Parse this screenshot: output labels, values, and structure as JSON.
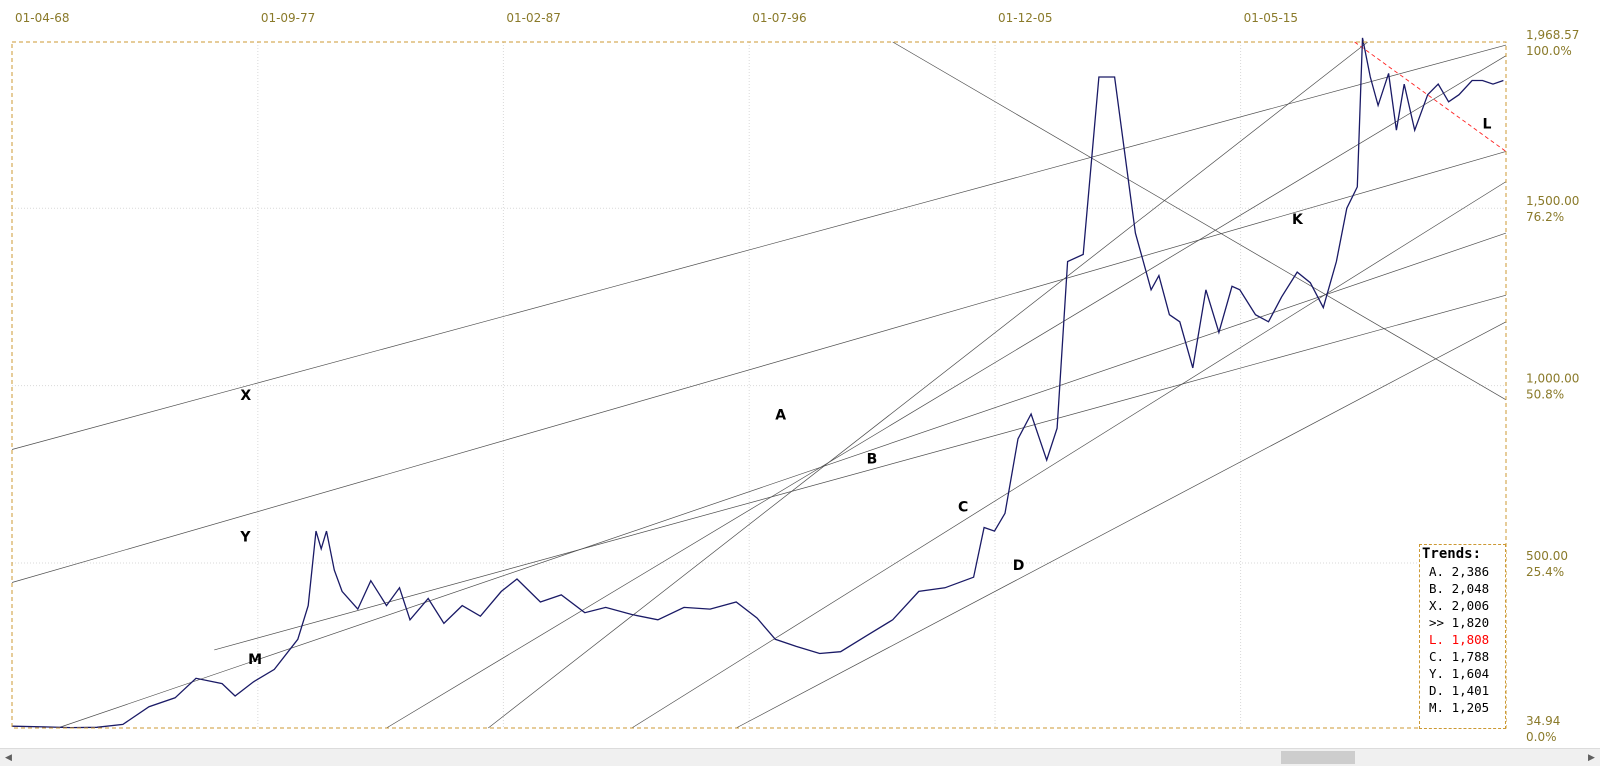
{
  "chart_data": {
    "type": "line",
    "x_tick_labels": [
      "01-04-68",
      "01-09-77",
      "01-02-87",
      "01-07-96",
      "01-12-05",
      "01-05-15"
    ],
    "y_price_labels": [
      "1,968.57",
      "1,500.00",
      "1,000.00",
      "500.00",
      "34.94"
    ],
    "y_pct_labels": [
      "100.0%",
      "76.2%",
      "50.8%",
      "25.4%",
      "0.0%"
    ],
    "y_tick_values": [
      1968.57,
      1500,
      1000,
      500,
      34.94
    ],
    "ylim": [
      34.94,
      1968.57
    ],
    "x_tick_years": [
      1968.25,
      1977.67,
      1987.08,
      1996.5,
      2005.92,
      2015.33
    ],
    "xlim": [
      1968.25,
      2025.5
    ],
    "series": [
      {
        "color": "#1a1a66",
        "x": [
          1968.25,
          1969.5,
          1970.5,
          1971.5,
          1972.5,
          1973.5,
          1974.5,
          1975.3,
          1976.3,
          1976.8,
          1977.5,
          1978.3,
          1979.2,
          1979.6,
          1979.9,
          1980.1,
          1980.3,
          1980.6,
          1980.9,
          1981.5,
          1982,
          1982.6,
          1983.1,
          1983.5,
          1984.2,
          1984.8,
          1985.5,
          1986.2,
          1987,
          1987.6,
          1988.5,
          1989.3,
          1990.2,
          1991,
          1992,
          1993,
          1994,
          1995,
          1996,
          1996.8,
          1997.5,
          1998.3,
          1999.2,
          2000,
          2001,
          2002,
          2003,
          2004,
          2005.1,
          2005.5,
          2005.9,
          2006.3,
          2006.8,
          2007.3,
          2007.9,
          2008.3,
          2008.7,
          2009.3,
          2009.9,
          2010.5,
          2010.9,
          2011.3,
          2011.6,
          2011.9,
          2012.2,
          2012.6,
          2013,
          2013.5,
          2014,
          2014.5,
          2015,
          2015.3,
          2015.9,
          2016.4,
          2016.9,
          2017.5,
          2018,
          2018.5,
          2019,
          2019.4,
          2019.8,
          2020,
          2020.3,
          2020.6,
          2021,
          2021.3,
          2021.6,
          2022,
          2022.5,
          2022.9,
          2023.3,
          2023.7,
          2024.2,
          2024.6,
          2025,
          2025.4
        ],
        "y": [
          40,
          38,
          36,
          37,
          45,
          95,
          120,
          175,
          160,
          125,
          165,
          200,
          285,
          380,
          590,
          540,
          590,
          480,
          420,
          370,
          450,
          380,
          430,
          340,
          400,
          330,
          380,
          350,
          420,
          455,
          390,
          410,
          360,
          375,
          355,
          340,
          375,
          370,
          390,
          345,
          285,
          265,
          245,
          250,
          295,
          340,
          420,
          430,
          460,
          600,
          590,
          640,
          850,
          920,
          790,
          880,
          1350,
          1370,
          1870,
          1870,
          1650,
          1430,
          1350,
          1270,
          1310,
          1200,
          1180,
          1050,
          1270,
          1150,
          1280,
          1270,
          1200,
          1180,
          1250,
          1320,
          1290,
          1220,
          1350,
          1500,
          1560,
          1980,
          1870,
          1790,
          1880,
          1720,
          1850,
          1720,
          1820,
          1850,
          1800,
          1820,
          1860,
          1860,
          1850,
          1860
        ]
      }
    ],
    "trend_lines": [
      {
        "points": [
          [
            1968.25,
            820
          ],
          [
            2025.5,
            1960
          ]
        ]
      },
      {
        "points": [
          [
            1968.25,
            445
          ],
          [
            2025.5,
            1660
          ]
        ]
      },
      {
        "points": [
          [
            1976.0,
            255
          ],
          [
            2025.5,
            1255
          ]
        ]
      },
      {
        "points": [
          [
            1970.0,
            34.94
          ],
          [
            2025.5,
            1430
          ]
        ]
      },
      {
        "points": [
          [
            1982.6,
            34.94
          ],
          [
            2025.5,
            1930
          ]
        ]
      },
      {
        "points": [
          [
            1986.5,
            34.94
          ],
          [
            2020.2,
            1968.57
          ]
        ]
      },
      {
        "points": [
          [
            1992.0,
            34.94
          ],
          [
            2025.5,
            1575
          ]
        ]
      },
      {
        "points": [
          [
            1996.0,
            34.94
          ],
          [
            2025.5,
            1180
          ]
        ]
      },
      {
        "points": [
          [
            2002.0,
            1968.57
          ],
          [
            2025.5,
            960
          ]
        ]
      }
    ],
    "trend_line_L": {
      "color": "#ff2222",
      "points": [
        [
          2019.7,
          1968.57
        ],
        [
          2025.5,
          1660
        ]
      ]
    },
    "annotations": [
      {
        "text": "X",
        "x": 1977.0,
        "y": 960
      },
      {
        "text": "Y",
        "x": 1977.0,
        "y": 560
      },
      {
        "text": "M",
        "x": 1977.3,
        "y": 215
      },
      {
        "text": "A",
        "x": 1997.5,
        "y": 905
      },
      {
        "text": "B",
        "x": 2001.0,
        "y": 780
      },
      {
        "text": "C",
        "x": 2004.5,
        "y": 645
      },
      {
        "text": "D",
        "x": 2006.6,
        "y": 480
      },
      {
        "text": "K",
        "x": 2017.3,
        "y": 1455
      },
      {
        "text": "L",
        "x": 2024.6,
        "y": 1725,
        "color": "#ff2222"
      }
    ],
    "grid": true
  },
  "trends_box": {
    "title": "Trends:",
    "rows": [
      {
        "label": "A. 2,386",
        "color": "#000000"
      },
      {
        "label": "B. 2,048",
        "color": "#000000"
      },
      {
        "label": "X. 2,006",
        "color": "#000000"
      },
      {
        "label": ">> 1,820",
        "color": "#000000"
      },
      {
        "label": "L. 1,808",
        "color": "#ff0000"
      },
      {
        "label": "C. 1,788",
        "color": "#000000"
      },
      {
        "label": "Y. 1,604",
        "color": "#000000"
      },
      {
        "label": "D. 1,401",
        "color": "#000000"
      },
      {
        "label": "M. 1,205",
        "color": "#000000"
      }
    ]
  },
  "scrollbar": {
    "left_arrow": "◀",
    "right_arrow": "▶"
  }
}
